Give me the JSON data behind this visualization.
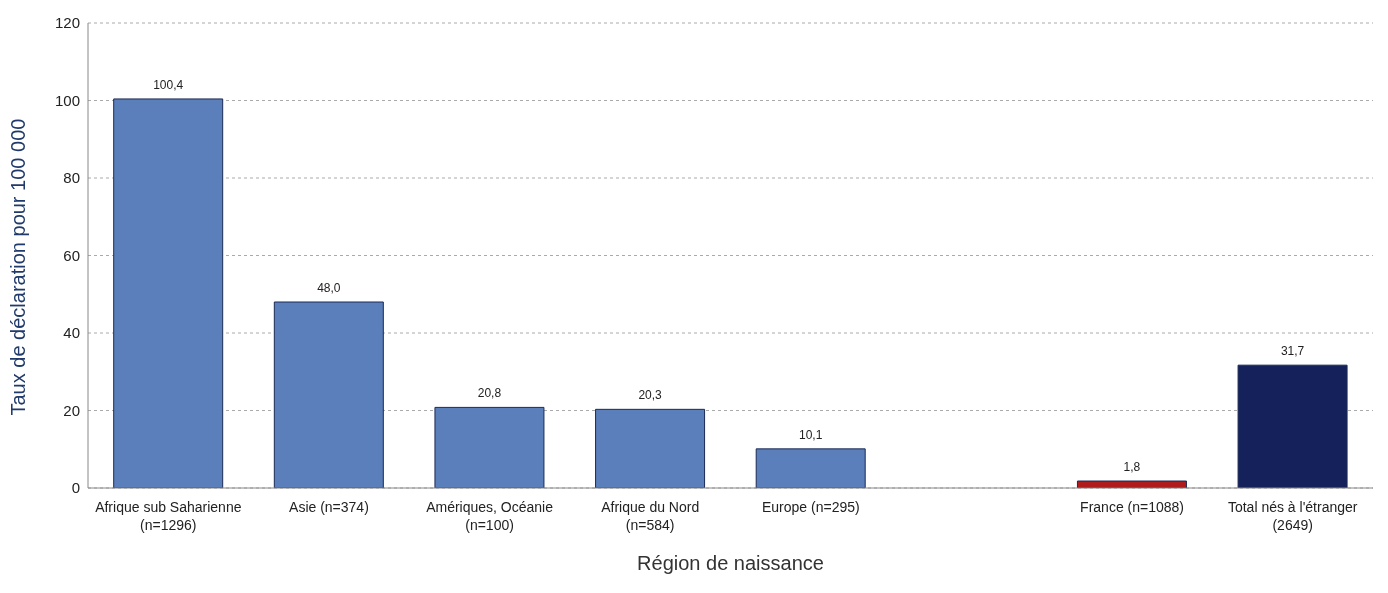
{
  "chart_data": {
    "type": "bar",
    "xlabel": "Région de naissance",
    "ylabel": "Taux de déclaration pour 100 000",
    "categories": [
      "Afrique sub Saharienne (n=1296)",
      "Asie (n=374)",
      "Amériques, Océanie (n=100)",
      "Afrique du Nord (n=584)",
      "Europe (n=295)",
      null,
      "France (n=1088)",
      "Total nés à l'étranger (2649)"
    ],
    "values": [
      100.4,
      48.0,
      20.8,
      20.3,
      10.1,
      null,
      1.8,
      31.7
    ],
    "value_labels": [
      "100,4",
      "48,0",
      "20,8",
      "20,3",
      "10,1",
      null,
      "1,8",
      "31,7"
    ],
    "colors": [
      "#5a7fba",
      "#5a7fba",
      "#5a7fba",
      "#5a7fba",
      "#5a7fba",
      null,
      "#b01c1c",
      "#14215a"
    ],
    "ylim": [
      0,
      120
    ],
    "yticks": [
      0,
      20,
      40,
      60,
      80,
      100,
      120
    ],
    "grid": "y"
  }
}
